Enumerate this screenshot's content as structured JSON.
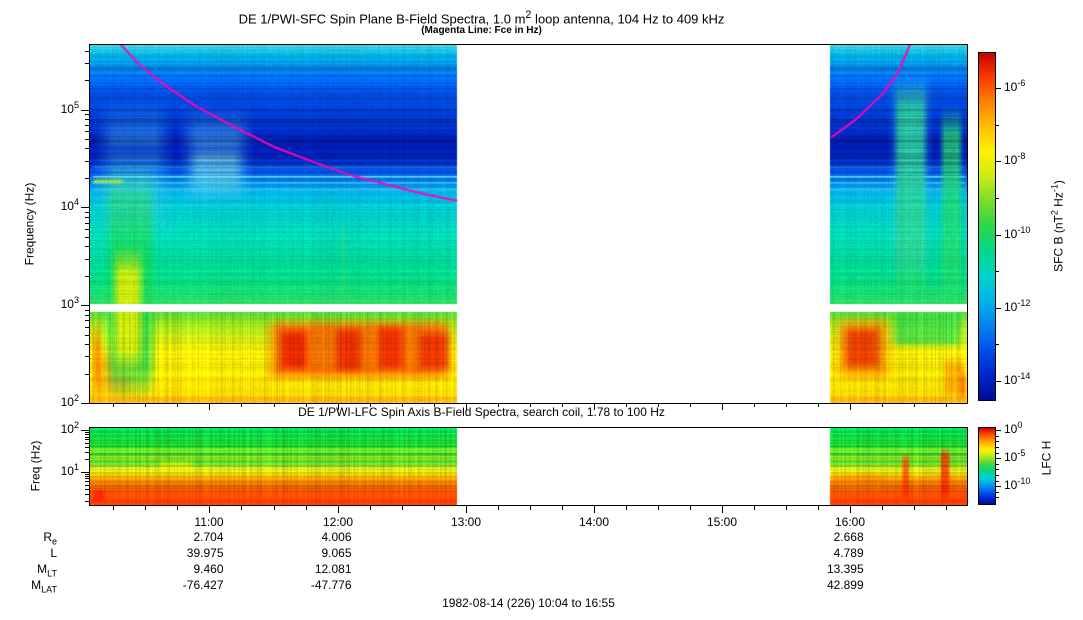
{
  "title_parts": [
    {
      "t": "DE 1/PWI-SFC  Spin Plane B-Field Spectra, 1.0 m"
    },
    {
      "sup": "2"
    },
    {
      "t": " loop antenna, 104 Hz to 409 kHz"
    }
  ],
  "subtitle": "(Magenta Line: Fce in Hz)",
  "footer": "1982-08-14 (226) 10:04 to 16:55",
  "rainbow": [
    "#c80000",
    "#ff3c00",
    "#ff8200",
    "#ffc000",
    "#fff000",
    "#c8ec14",
    "#78dc28",
    "#28d848",
    "#00d88c",
    "#00d4c8",
    "#00b4e8",
    "#0084f0",
    "#0050e8",
    "#0024cc",
    "#000c94"
  ],
  "chart_data": [
    {
      "type": "heatmap",
      "name": "sfc-spectrogram",
      "title": "DE 1/PWI-SFC  Spin Plane B-Field Spectra, 1.0 m2 loop antenna, 104 Hz to 409 kHz",
      "annotation": "(Magenta Line: Fce in Hz)",
      "ylabel": "Frequency (Hz)",
      "yticks_exp": [
        5,
        4,
        3,
        2
      ],
      "ylim_log": [
        2.0,
        5.66
      ],
      "xlim_hours": [
        10.0667,
        16.9167
      ],
      "xticks": [
        {
          "hour": 11,
          "label": "11:00"
        },
        {
          "hour": 12,
          "label": "12:00"
        },
        {
          "hour": 13,
          "label": "13:00"
        },
        {
          "hour": 14,
          "label": "14:00"
        },
        {
          "hour": 15,
          "label": "15:00"
        },
        {
          "hour": 16,
          "label": "16:00"
        }
      ],
      "time_gap_hours": [
        12.93,
        15.85
      ],
      "receiver_gap_log": [
        2.93,
        3.01
      ],
      "colorbar": {
        "label_parts": [
          {
            "t": "SFC B (nT"
          },
          {
            "sup": "2"
          },
          {
            "t": " Hz"
          },
          {
            "sup": "-1"
          },
          {
            "t": ")"
          }
        ],
        "tick_exps": [
          -6,
          -8,
          -10,
          -12,
          -14
        ],
        "minor_exps": [
          -7,
          -9,
          -11,
          -13
        ],
        "range_exp": [
          -5.04,
          -14.52
        ]
      },
      "fce_line": {
        "color": "#ff00bb",
        "segments": [
          [
            [
              10.31,
              5.66
            ],
            [
              10.45,
              5.46
            ],
            [
              10.65,
              5.25
            ],
            [
              10.9,
              5.03
            ],
            [
              11.2,
              4.82
            ],
            [
              11.5,
              4.62
            ],
            [
              11.8,
              4.47
            ],
            [
              12.1,
              4.33
            ],
            [
              12.45,
              4.21
            ],
            [
              12.7,
              4.13
            ],
            [
              12.93,
              4.07
            ]
          ],
          [
            [
              15.86,
              4.72
            ],
            [
              16.05,
              4.9
            ],
            [
              16.25,
              5.15
            ],
            [
              16.38,
              5.38
            ],
            [
              16.47,
              5.66
            ]
          ]
        ]
      },
      "stripe_zone": [
        4.32,
        5.5
      ],
      "streak_zone": [
        2.0,
        2.93
      ],
      "base_stops": [
        [
          2.0,
          "#ffb820"
        ],
        [
          2.08,
          "#ffd400"
        ],
        [
          2.25,
          "#ffe800"
        ],
        [
          2.55,
          "#f0ee08"
        ],
        [
          2.8,
          "#a2e41e"
        ],
        [
          2.93,
          "#50dc3c"
        ],
        [
          3.02,
          "#28dc64"
        ],
        [
          3.3,
          "#00dc8c"
        ],
        [
          3.7,
          "#00d8b4"
        ],
        [
          4.0,
          "#00ccd4"
        ],
        [
          4.15,
          "#00b4e4"
        ],
        [
          4.28,
          "#0076ee"
        ],
        [
          4.4,
          "#0040dc"
        ],
        [
          4.52,
          "#0024bc"
        ],
        [
          4.68,
          "#001cac"
        ],
        [
          4.82,
          "#0030c4"
        ],
        [
          5.0,
          "#0040da"
        ],
        [
          5.18,
          "#0052e8"
        ],
        [
          5.32,
          "#0066ee"
        ],
        [
          5.45,
          "#008ce8"
        ],
        [
          5.56,
          "#00b2e0"
        ],
        [
          5.66,
          "#3cd8e4"
        ]
      ],
      "features": [
        {
          "t": [
            10.07,
            10.45
          ],
          "f": [
            2.0,
            2.62
          ],
          "c": "#ff9000",
          "a": 0.75,
          "et": 0.12,
          "ef": 0.2
        },
        {
          "t": [
            10.07,
            10.16
          ],
          "f": [
            2.0,
            2.9
          ],
          "c": "#ff3800",
          "a": 0.55,
          "et": 0.05,
          "ef": 0.3
        },
        {
          "t": [
            10.16,
            10.6
          ],
          "f": [
            2.0,
            4.45
          ],
          "c": "#18d855",
          "a": 0.8,
          "et": 0.1,
          "ef": 0.35
        },
        {
          "t": [
            10.22,
            10.5
          ],
          "f": [
            2.25,
            3.6
          ],
          "c": "#eaee00",
          "a": 0.85,
          "et": 0.08,
          "ef": 0.3
        },
        {
          "t": [
            10.1,
            10.72
          ],
          "f": [
            3.6,
            5.15
          ],
          "c": "#48cce8",
          "a": 0.35,
          "et": 0.15,
          "ef": 0.4
        },
        {
          "t": [
            10.75,
            11.35
          ],
          "f": [
            3.95,
            5.05
          ],
          "c": "#55cce8",
          "a": 0.4,
          "et": 0.15,
          "ef": 0.3
        },
        {
          "t": [
            10.82,
            11.28
          ],
          "f": [
            4.1,
            4.7
          ],
          "c": "#7adce0",
          "a": 0.45,
          "et": 0.1,
          "ef": 0.2
        },
        {
          "t": [
            10.07,
            10.34
          ],
          "f": [
            4.23,
            4.3
          ],
          "c": "#b4e41e",
          "a": 0.9,
          "et": 0.04,
          "ef": 0.03
        },
        {
          "t": [
            10.07,
            16.92
          ],
          "f": [
            4.165,
            4.2
          ],
          "c": "#50d8f0",
          "a": 0.7,
          "et": 0.03,
          "ef": 0.015
        },
        {
          "t": [
            10.07,
            16.92
          ],
          "f": [
            4.235,
            4.265
          ],
          "c": "#50d8f0",
          "a": 0.75,
          "et": 0.03,
          "ef": 0.012
        },
        {
          "t": [
            10.07,
            16.92
          ],
          "f": [
            4.3,
            4.33
          ],
          "c": "#68e4f4",
          "a": 0.9,
          "et": 0.03,
          "ef": 0.012
        },
        {
          "t": [
            10.07,
            16.92
          ],
          "f": [
            4.395,
            4.425
          ],
          "c": "#40c0e8",
          "a": 0.5,
          "et": 0.03,
          "ef": 0.015
        },
        {
          "t": [
            10.07,
            16.92
          ],
          "f": [
            4.52,
            4.66
          ],
          "c": "#0016a0",
          "a": 0.5,
          "et": 0.05,
          "ef": 0.08
        },
        {
          "t": [
            10.07,
            16.92
          ],
          "f": [
            4.86,
            4.94
          ],
          "c": "#002cb8",
          "a": 0.35,
          "et": 0.05,
          "ef": 0.05
        },
        {
          "t": [
            11.42,
            12.93
          ],
          "f": [
            2.2,
            2.88
          ],
          "c": "#ff5a00",
          "a": 0.8,
          "et": 0.12,
          "ef": 0.12
        },
        {
          "t": [
            11.52,
            11.8
          ],
          "f": [
            2.3,
            2.78
          ],
          "c": "#e51400",
          "a": 0.8,
          "et": 0.08,
          "ef": 0.1
        },
        {
          "t": [
            11.95,
            12.22
          ],
          "f": [
            2.28,
            2.8
          ],
          "c": "#e51400",
          "a": 0.7,
          "et": 0.08,
          "ef": 0.1
        },
        {
          "t": [
            12.28,
            12.55
          ],
          "f": [
            2.3,
            2.82
          ],
          "c": "#ee2000",
          "a": 0.8,
          "et": 0.08,
          "ef": 0.1
        },
        {
          "t": [
            12.6,
            12.9
          ],
          "f": [
            2.3,
            2.76
          ],
          "c": "#e51400",
          "a": 0.65,
          "et": 0.08,
          "ef": 0.1
        },
        {
          "t": [
            12.0,
            12.08
          ],
          "f": [
            2.95,
            3.9
          ],
          "c": "#30dc70",
          "a": 0.4,
          "et": 0.04,
          "ef": 0.2
        },
        {
          "t": [
            15.85,
            16.38
          ],
          "f": [
            2.2,
            2.9
          ],
          "c": "#ff8800",
          "a": 0.8,
          "et": 0.15,
          "ef": 0.12
        },
        {
          "t": [
            15.92,
            16.28
          ],
          "f": [
            2.32,
            2.8
          ],
          "c": "#e82400",
          "a": 0.75,
          "et": 0.1,
          "ef": 0.1
        },
        {
          "t": [
            16.3,
            16.92
          ],
          "f": [
            2.55,
            2.95
          ],
          "c": "#28dc50",
          "a": 0.7,
          "et": 0.1,
          "ef": 0.08
        },
        {
          "t": [
            16.34,
            16.62
          ],
          "f": [
            2.95,
            5.3
          ],
          "c": "#20d868",
          "a": 0.75,
          "et": 0.06,
          "ef": 0.3
        },
        {
          "t": [
            16.3,
            16.66
          ],
          "f": [
            3.2,
            5.45
          ],
          "c": "#48c8e0",
          "a": 0.3,
          "et": 0.08,
          "ef": 0.3
        },
        {
          "t": [
            16.36,
            16.6
          ],
          "f": [
            2.0,
            2.6
          ],
          "c": "#f0e000",
          "a": 0.5,
          "et": 0.06,
          "ef": 0.15
        },
        {
          "t": [
            16.7,
            16.9
          ],
          "f": [
            2.95,
            5.05
          ],
          "c": "#28d860",
          "a": 0.7,
          "et": 0.05,
          "ef": 0.3
        },
        {
          "t": [
            16.72,
            16.92
          ],
          "f": [
            2.0,
            2.5
          ],
          "c": "#ff9000",
          "a": 0.7,
          "et": 0.05,
          "ef": 0.15
        },
        {
          "t": [
            16.86,
            16.92
          ],
          "f": [
            2.0,
            2.35
          ],
          "c": "#ff3000",
          "a": 0.6,
          "et": 0.03,
          "ef": 0.1
        },
        {
          "t": [
            10.07,
            16.92
          ],
          "f": [
            2.0,
            2.07
          ],
          "c": "#ff9800",
          "a": 0.4,
          "et": 0.02,
          "ef": 0.03
        }
      ]
    },
    {
      "type": "heatmap",
      "name": "lfc-spectrogram",
      "title": "DE 1/PWI-LFC  Spin Axis B-Field Spectra, search coil, 1.78 to 100 Hz",
      "ylabel": "Freq (Hz)",
      "yticks_exp": [
        2,
        1
      ],
      "ylim_log": [
        0.21,
        2.05
      ],
      "xlim_hours": [
        10.0667,
        16.9167
      ],
      "time_gap_hours": [
        12.93,
        15.85
      ],
      "colorbar": {
        "label": "LFC H",
        "tick_exps": [
          0,
          -5,
          -10
        ],
        "range_exp": [
          0.4,
          -13.2
        ]
      },
      "stripe_zone": [
        0.21,
        2.05
      ],
      "streak_zone": [
        0.21,
        2.05
      ],
      "base_stops": [
        [
          0.21,
          "#ff4600"
        ],
        [
          0.3,
          "#f83c00"
        ],
        [
          0.48,
          "#ff4c00"
        ],
        [
          0.65,
          "#ff7000"
        ],
        [
          0.82,
          "#ff9400"
        ],
        [
          0.9,
          "#f0c008"
        ],
        [
          1.0,
          "#d8dc12"
        ],
        [
          1.12,
          "#b4e01e"
        ],
        [
          1.25,
          "#44d42a"
        ],
        [
          1.34,
          "#9ee022"
        ],
        [
          1.44,
          "#2cd42c"
        ],
        [
          1.52,
          "#8adc26"
        ],
        [
          1.6,
          "#20d430"
        ],
        [
          1.8,
          "#16dc3c"
        ],
        [
          2.05,
          "#00e058"
        ]
      ],
      "features": [
        {
          "t": [
            10.07,
            10.2
          ],
          "f": [
            0.21,
            0.62
          ],
          "c": "#e81200",
          "a": 0.7,
          "et": 0.05,
          "ef": 0.15
        },
        {
          "t": [
            10.55,
            10.9
          ],
          "f": [
            0.95,
            1.3
          ],
          "c": "#f8f400",
          "a": 0.55,
          "et": 0.1,
          "ef": 0.12
        },
        {
          "t": [
            15.85,
            16.35
          ],
          "f": [
            0.5,
            1.0
          ],
          "c": "#ff7a00",
          "a": 0.45,
          "et": 0.12,
          "ef": 0.15
        },
        {
          "t": [
            16.4,
            16.48
          ],
          "f": [
            0.21,
            1.5
          ],
          "c": "#ff2400",
          "a": 0.7,
          "et": 0.03,
          "ef": 0.25
        },
        {
          "t": [
            16.7,
            16.8
          ],
          "f": [
            0.21,
            1.62
          ],
          "c": "#ff2400",
          "a": 0.75,
          "et": 0.03,
          "ef": 0.25
        },
        {
          "t": [
            16.55,
            16.6
          ],
          "f": [
            0.21,
            0.9
          ],
          "c": "#ff5000",
          "a": 0.5,
          "et": 0.03,
          "ef": 0.2
        }
      ]
    }
  ],
  "ephemeris": {
    "row_labels": [
      {
        "base": "R",
        "sub": "e"
      },
      {
        "base": "L",
        "sub": ""
      },
      {
        "base": "M",
        "sub": "LT"
      },
      {
        "base": "M",
        "sub": "LAT"
      }
    ],
    "columns": [
      {
        "label": "11:00",
        "hour": 11,
        "values": [
          "2.704",
          "39.975",
          "9.460",
          "-76.427"
        ]
      },
      {
        "label": "12:00",
        "hour": 12,
        "values": [
          "4.006",
          "9.065",
          "12.081",
          "-47.776"
        ]
      },
      {
        "label": "16:00",
        "hour": 16,
        "values": [
          "2.668",
          "4.789",
          "13.395",
          "42.899"
        ]
      }
    ]
  }
}
